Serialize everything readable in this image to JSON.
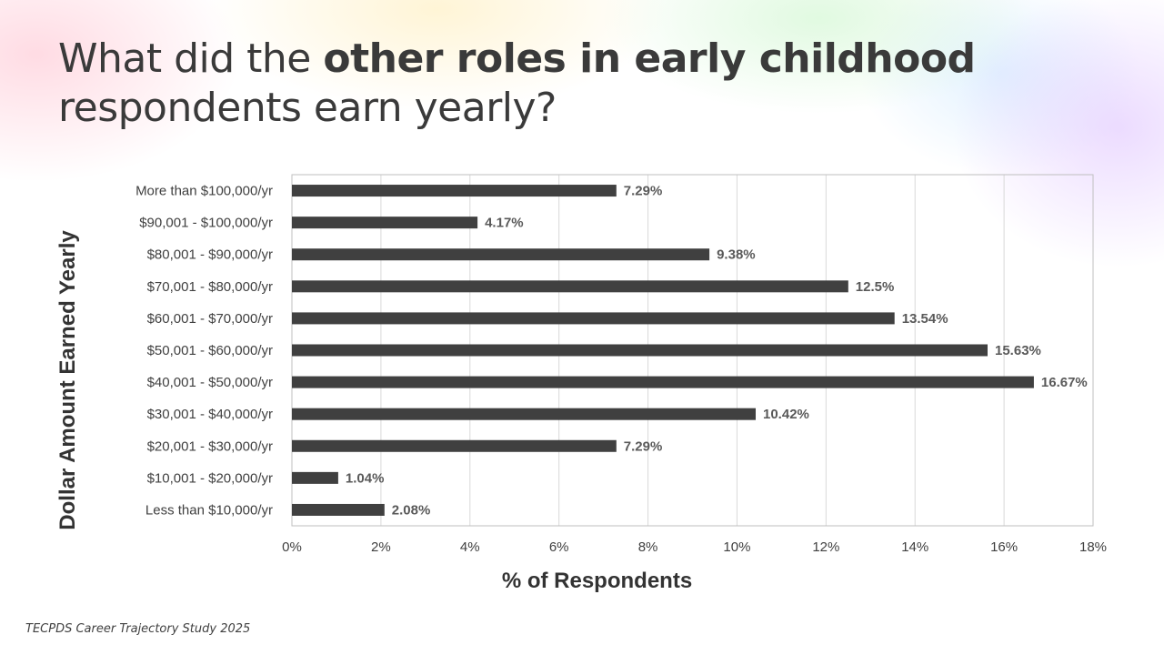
{
  "title": {
    "prefix": "What did the ",
    "bold": "other roles in early childhood",
    "suffix": "respondents earn yearly?"
  },
  "source": "TECPDS Career Trajectory Study 2025",
  "chart_data": {
    "type": "bar",
    "orientation": "horizontal",
    "categories": [
      "More than $100,000/yr",
      "$90,001 - $100,000/yr",
      "$80,001 - $90,000/yr",
      "$70,001 - $80,000/yr",
      "$60,001 - $70,000/yr",
      "$50,001 - $60,000/yr",
      "$40,001 - $50,000/yr",
      "$30,001 - $40,000/yr",
      "$20,001 - $30,000/yr",
      "$10,001 - $20,000/yr",
      "Less than $10,000/yr"
    ],
    "values": [
      7.29,
      4.17,
      9.38,
      12.5,
      13.54,
      15.63,
      16.67,
      10.42,
      7.29,
      1.04,
      2.08
    ],
    "data_labels": [
      "7.29%",
      "4.17%",
      "9.38%",
      "12.5%",
      "13.54%",
      "15.63%",
      "16.67%",
      "10.42%",
      "7.29%",
      "1.04%",
      "2.08%"
    ],
    "xlabel": "% of Respondents",
    "ylabel": "Dollar Amount Earned Yearly",
    "xlim": [
      0,
      18
    ],
    "xticks": [
      0,
      2,
      4,
      6,
      8,
      10,
      12,
      14,
      16,
      18
    ],
    "xtick_labels": [
      "0%",
      "2%",
      "4%",
      "6%",
      "8%",
      "10%",
      "12%",
      "14%",
      "16%",
      "18%"
    ],
    "grid": true,
    "bar_color": "#404040",
    "grid_color": "#d9d9d9",
    "legend": "none"
  }
}
